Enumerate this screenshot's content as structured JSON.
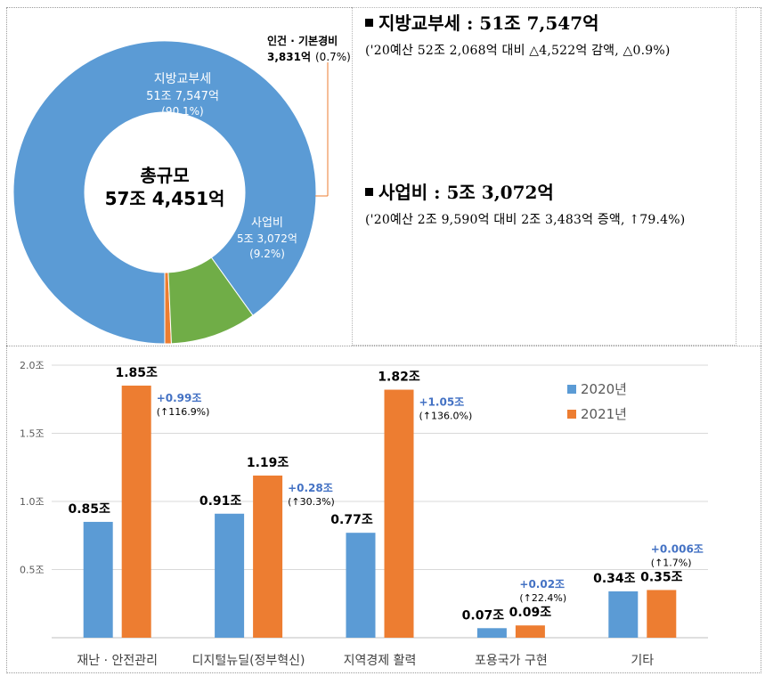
{
  "donut": {
    "center_title": "총규모",
    "center_value": "57조 4,451억",
    "segments": [
      {
        "name": "지방교부세",
        "amount": "51조 7,547억",
        "percent_label": "(90.1%)",
        "share": 90.1,
        "color": "#5b9bd5"
      },
      {
        "name": "인건 · 기본경비",
        "amount": "3,831억",
        "percent_label": "(0.7%)",
        "share": 0.7,
        "color": "#ed7d31"
      },
      {
        "name": "사업비",
        "amount": "5조 3,072억",
        "percent_label": "(9.2%)",
        "share": 9.2,
        "color": "#70ad47"
      }
    ]
  },
  "summary": {
    "items": [
      {
        "head": "지방교부세 : 51조 7,547억",
        "detail": "('20예산 52조 2,068억 대비 △4,522억 감액, △0.9%)"
      },
      {
        "head": "사업비 : 5조 3,072억",
        "detail": "('20예산 2조 9,590억 대비 2조 3,483억 증액, ↑79.4%)"
      }
    ]
  },
  "chart_data": {
    "type": "bar",
    "categories": [
      "재난 · 안전관리",
      "디지털뉴딜(정부혁신)",
      "지역경제 활력",
      "포용국가 구현",
      "기타"
    ],
    "series": [
      {
        "name": "2020년",
        "color": "#5b9bd5",
        "values": [
          0.85,
          0.91,
          0.77,
          0.07,
          0.34
        ],
        "labels": [
          "0.85조",
          "0.91조",
          "0.77조",
          "0.07조",
          "0.34조"
        ]
      },
      {
        "name": "2021년",
        "color": "#ed7d31",
        "values": [
          1.85,
          1.19,
          1.82,
          0.09,
          0.35
        ],
        "labels": [
          "1.85조",
          "1.19조",
          "1.82조",
          "0.09조",
          "0.35조"
        ]
      }
    ],
    "change_labels": [
      {
        "delta": "+0.99조",
        "pct": "(↑116.9%)"
      },
      {
        "delta": "+0.28조",
        "pct": "(↑30.3%)"
      },
      {
        "delta": "+1.05조",
        "pct": "(↑136.0%)"
      },
      {
        "delta": "+0.02조",
        "pct": "(↑22.4%)"
      },
      {
        "delta": "+0.006조",
        "pct": "(↑1.7%)"
      }
    ],
    "yticks": [
      0.5,
      1.0,
      1.5,
      2.0
    ],
    "ytick_labels": [
      "0.5조",
      "1.0조",
      "1.5조",
      "2.0조"
    ],
    "ylim": [
      0,
      2.0
    ],
    "grid": true,
    "legend_position": "top-right",
    "delta_color": "#4472c4"
  }
}
